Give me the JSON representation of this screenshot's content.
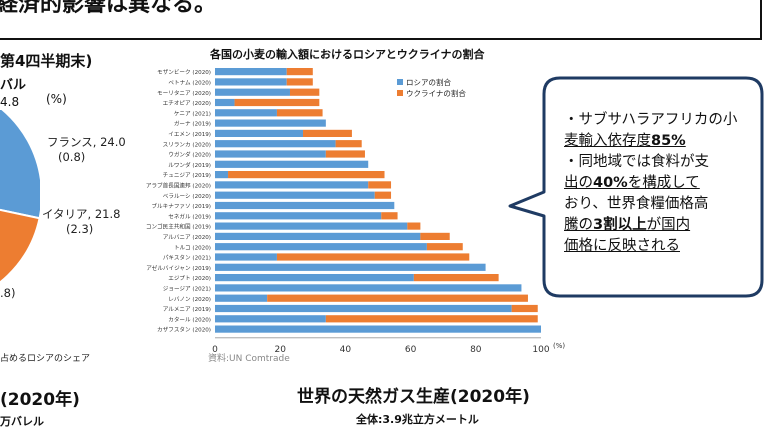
{
  "header": {
    "title": "経済的影響は異なる。"
  },
  "pie": {
    "title": "第4四半期末)",
    "unit": "バル",
    "value_partial": "4.8",
    "pct_label": "(%)",
    "labels": [
      {
        "name": "フランス, 24.0",
        "share": "(0.8)"
      },
      {
        "name": "イタリア, 21.8",
        "share": "(2.3)"
      },
      {
        "name": ".8)",
        "share": ""
      }
    ],
    "footer": "占めるロシアのシェア",
    "colors": {
      "blue": "#5b9bd5",
      "orange": "#ed7d31"
    }
  },
  "chart_data": {
    "type": "bar",
    "stacked": true,
    "orientation": "horizontal",
    "title": "各国の小麦の輸入額におけるロシアとウクライナの割合",
    "categories": [
      "モザンビーク (2020)",
      "ベトナム (2020)",
      "モーリタニア (2020)",
      "エチオピア (2020)",
      "ケニア (2021)",
      "ガーナ (2019)",
      "イエメン (2019)",
      "スリランカ (2020)",
      "ウガンダ (2020)",
      "ルワンダ (2019)",
      "チュニジア (2019)",
      "アラブ首長国連邦 (2020)",
      "ベラルーシ (2020)",
      "ブルキナファソ (2019)",
      "セネガル (2019)",
      "コンゴ民主共和国 (2019)",
      "アルバニア (2020)",
      "トルコ (2020)",
      "パキスタン (2021)",
      "アゼルバイジャン (2019)",
      "エジプト (2020)",
      "ジョージア (2021)",
      "レバノン (2020)",
      "アルメニア (2019)",
      "カタール (2020)",
      "カザフスタン (2020)"
    ],
    "series": [
      {
        "name": "ロシアの割合",
        "color": "#5b9bd5",
        "values": [
          22,
          22,
          23,
          6,
          19,
          34,
          27,
          37,
          34,
          47,
          4,
          47,
          49,
          55,
          51,
          59,
          63,
          65,
          19,
          83,
          61,
          94,
          16,
          91,
          34,
          100
        ]
      },
      {
        "name": "ウクライナの割合",
        "color": "#ed7d31",
        "values": [
          8,
          8,
          9,
          26,
          14,
          0,
          15,
          8,
          12,
          0,
          48,
          7,
          5,
          0,
          5,
          4,
          9,
          11,
          59,
          0,
          26,
          0,
          80,
          8,
          65,
          0
        ]
      }
    ],
    "xlim": [
      0,
      100
    ],
    "xticks": [
      "0",
      "20",
      "40",
      "60",
      "80",
      "100"
    ],
    "x_unit": "(%)",
    "source": "資料:UN Comtrade"
  },
  "callout": {
    "lines": [
      "・サブサハラアフリカの小",
      "麦輸入依存度85%",
      "・同地域では食料が支",
      "出の40%を構成して",
      "おり、世界食糧価格高",
      "騰の3割以上が国内",
      "価格に反映される"
    ]
  },
  "bottom": {
    "left_title": "(2020年)",
    "left_sub": "万バレル",
    "right_title": "世界の天然ガス生産(2020年)",
    "right_sub": "全体:3.9兆立方メートル"
  }
}
